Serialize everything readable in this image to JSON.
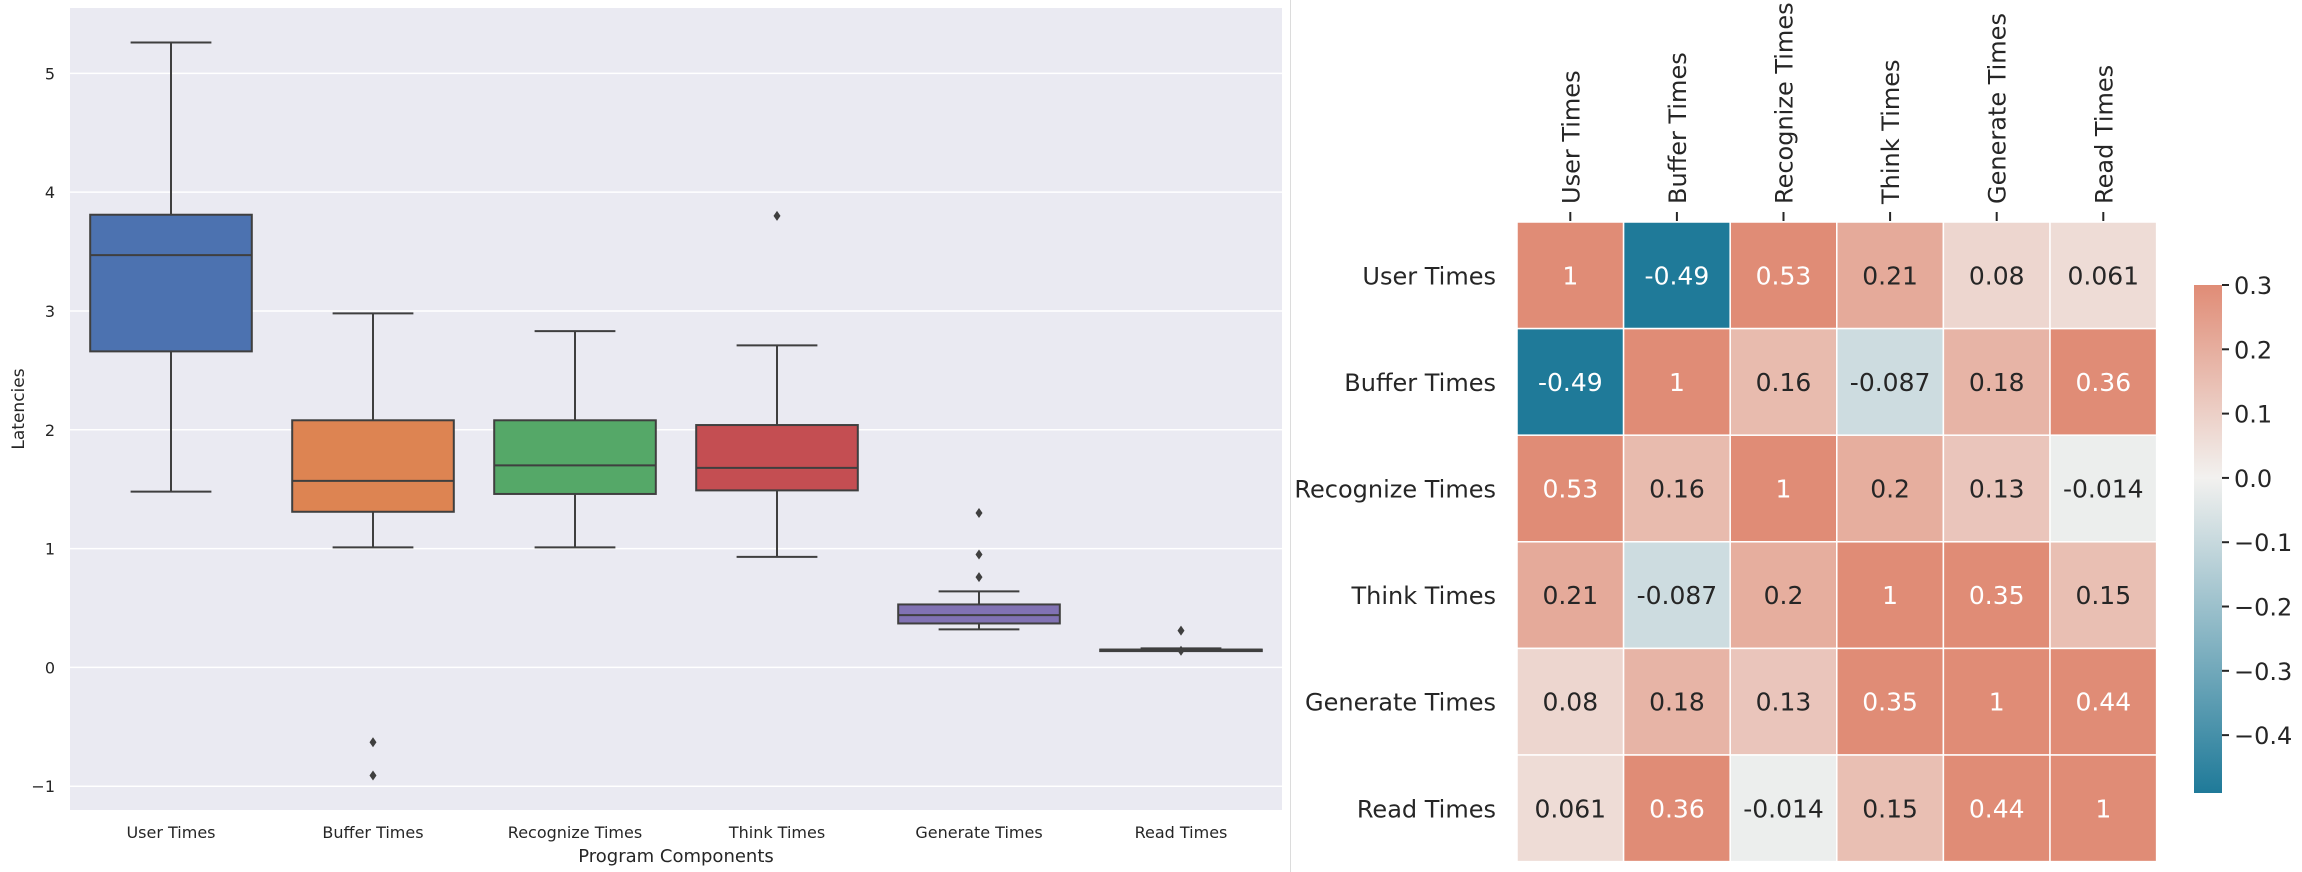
{
  "chart_data": [
    {
      "type": "box",
      "xlabel": "Program Components",
      "ylabel": "Latencies",
      "ylim": [
        -1.2,
        5.55
      ],
      "yticks": [
        -1,
        0,
        1,
        2,
        3,
        4,
        5
      ],
      "grid": true,
      "categories": [
        "User Times",
        "Buffer Times",
        "Recognize Times",
        "Think Times",
        "Generate Times",
        "Read Times"
      ],
      "boxes": [
        {
          "category": "User Times",
          "color": "#4c72b0",
          "whisker_low": 1.48,
          "q1": 2.66,
          "median": 3.47,
          "q3": 3.81,
          "whisker_high": 5.26,
          "outliers": []
        },
        {
          "category": "Buffer Times",
          "color": "#dd8452",
          "whisker_low": 1.01,
          "q1": 1.31,
          "median": 1.57,
          "q3": 2.08,
          "whisker_high": 2.98,
          "outliers": [
            -0.63,
            -0.91
          ]
        },
        {
          "category": "Recognize Times",
          "color": "#55a868",
          "whisker_low": 1.01,
          "q1": 1.46,
          "median": 1.7,
          "q3": 2.08,
          "whisker_high": 2.83,
          "outliers": []
        },
        {
          "category": "Think Times",
          "color": "#c44e52",
          "whisker_low": 0.93,
          "q1": 1.49,
          "median": 1.68,
          "q3": 2.04,
          "whisker_high": 2.71,
          "outliers": [
            3.8
          ]
        },
        {
          "category": "Generate Times",
          "color": "#8172b3",
          "whisker_low": 0.32,
          "q1": 0.37,
          "median": 0.44,
          "q3": 0.53,
          "whisker_high": 0.64,
          "outliers": [
            1.3,
            0.95,
            0.76
          ]
        },
        {
          "category": "Read Times",
          "color": "#937860",
          "whisker_low": 0.14,
          "q1": 0.14,
          "median": 0.15,
          "q3": 0.15,
          "whisker_high": 0.16,
          "outliers": [
            0.31,
            0.14
          ]
        }
      ]
    },
    {
      "type": "heatmap",
      "labels": [
        "User Times",
        "Buffer Times",
        "Recognize Times",
        "Think Times",
        "Generate Times",
        "Read Times"
      ],
      "matrix": [
        [
          1,
          -0.49,
          0.53,
          0.21,
          0.08,
          0.061
        ],
        [
          -0.49,
          1,
          0.16,
          -0.087,
          0.18,
          0.36
        ],
        [
          0.53,
          0.16,
          1,
          0.2,
          0.13,
          -0.014
        ],
        [
          0.21,
          -0.087,
          0.2,
          1,
          0.35,
          0.15
        ],
        [
          0.08,
          0.18,
          0.13,
          0.35,
          1,
          0.44
        ],
        [
          0.061,
          0.36,
          -0.014,
          0.15,
          0.44,
          1
        ]
      ],
      "colorbar": {
        "vmin": -0.49,
        "vmax": 0.3,
        "ticks": [
          0.3,
          0.2,
          0.1,
          0.0,
          -0.1,
          -0.2,
          -0.3,
          -0.4
        ],
        "tick_labels": [
          "0.3",
          "0.2",
          "0.1",
          "0.0",
          "−0.1",
          "−0.2",
          "−0.3",
          "−0.4"
        ],
        "low_color": "#1f7a99",
        "mid_color": "#f2f1ef",
        "high_color": "#e08c76"
      }
    }
  ]
}
